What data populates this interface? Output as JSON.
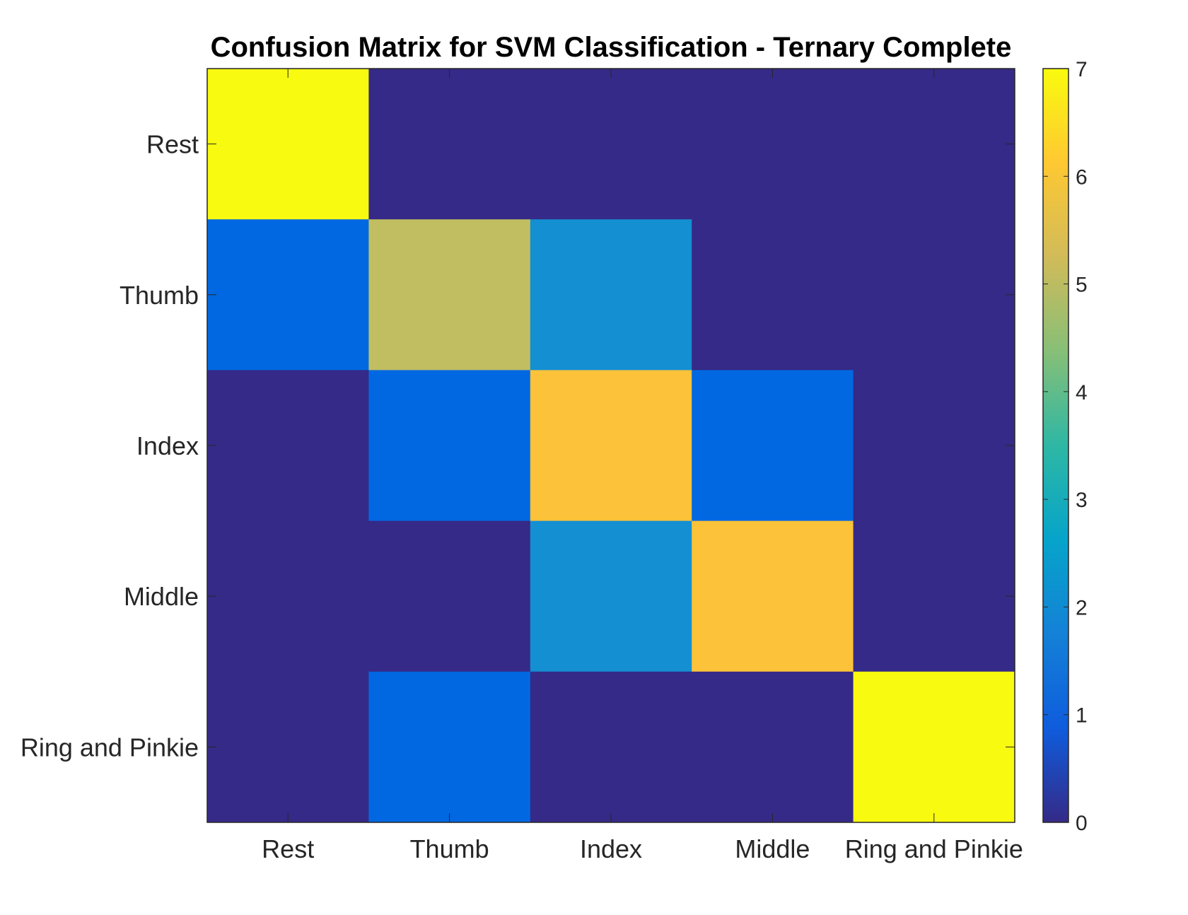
{
  "chart_data": {
    "type": "heatmap",
    "title": "Confusion Matrix for SVM Classification - Ternary Complete",
    "xlabel": "",
    "ylabel": "",
    "x_categories": [
      "Rest",
      "Thumb",
      "Index",
      "Middle",
      "Ring and Pinkie"
    ],
    "y_categories": [
      "Rest",
      "Thumb",
      "Index",
      "Middle",
      "Ring and Pinkie"
    ],
    "matrix": [
      [
        7,
        0,
        0,
        0,
        0
      ],
      [
        1,
        5,
        2,
        0,
        0
      ],
      [
        0,
        1,
        6,
        1,
        0
      ],
      [
        0,
        0,
        2,
        6,
        0
      ],
      [
        0,
        1,
        0,
        0,
        7
      ]
    ],
    "colorbar": {
      "range": [
        0,
        7
      ],
      "ticks": [
        0,
        1,
        2,
        3,
        4,
        5,
        6,
        7
      ],
      "colormap": "parula"
    },
    "colors": {
      "0": "#352a87",
      "1": "#0268e1",
      "2": "#148fd2",
      "3": "#0fafc0",
      "4": "#52be8f",
      "5": "#c1be62",
      "6": "#fcc239",
      "7": "#f8fa10"
    },
    "grid": false,
    "legend": "colorbar-right"
  }
}
